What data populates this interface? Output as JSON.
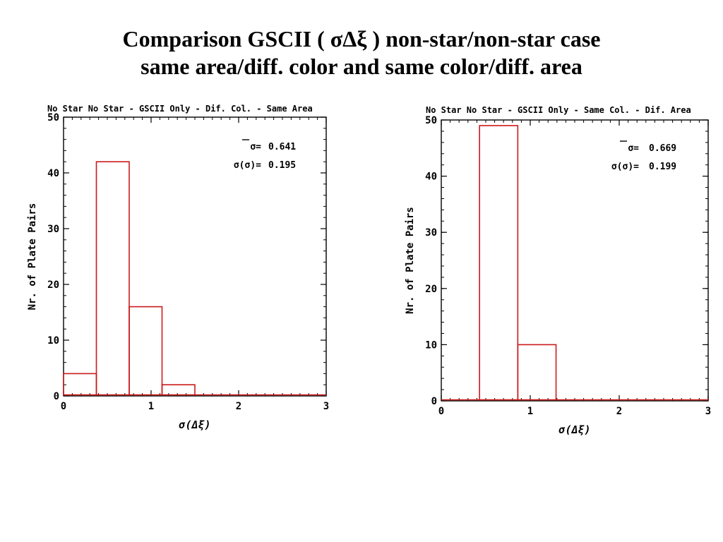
{
  "slide": {
    "title_line1": "Comparison GSCII ( σΔξ ) non-star/non-star case",
    "title_line2": "same area/diff. color and same color/diff. area"
  },
  "colors": {
    "histogram": "#cc1a1a",
    "axes": "#000000"
  },
  "chart_data": [
    {
      "type": "bar",
      "histogram": true,
      "title": "No Star No Star - GSCII Only - Dif. Col. - Same Area",
      "xlabel": "σ(Δξ)",
      "ylabel": "Nr. of Plate Pairs",
      "xlim": [
        0,
        3
      ],
      "ylim": [
        0,
        50
      ],
      "xticks": [
        "0",
        "1",
        "2",
        "3"
      ],
      "yticks": [
        "0",
        "10",
        "20",
        "30",
        "40",
        "50"
      ],
      "bin_edges": [
        0,
        0.375,
        0.75,
        1.125,
        1.5,
        1.875,
        2.25,
        2.625,
        3
      ],
      "values": [
        4,
        42,
        16,
        2,
        0,
        0,
        0,
        0
      ],
      "stats": [
        {
          "label": "σ=",
          "value": "0.641",
          "overline": true
        },
        {
          "label": "σ(σ)=",
          "value": "0.195",
          "overline": false
        }
      ],
      "grid": false
    },
    {
      "type": "bar",
      "histogram": true,
      "title": "No Star No Star - GSCII Only - Same Col. - Dif. Area",
      "xlabel": "σ(Δξ)",
      "ylabel": "Nr. of Plate Pairs",
      "xlim": [
        0,
        3
      ],
      "ylim": [
        0,
        50
      ],
      "xticks": [
        "0",
        "1",
        "2",
        "3"
      ],
      "yticks": [
        "0",
        "10",
        "20",
        "30",
        "40",
        "50"
      ],
      "bin_edges": [
        0,
        0.43,
        0.86,
        1.29,
        1.72,
        2.15,
        2.58,
        3.0
      ],
      "values": [
        0,
        49,
        10,
        0,
        0,
        0,
        0
      ],
      "stats": [
        {
          "label": "σ=",
          "value": "0.669",
          "overline": true
        },
        {
          "label": "σ(σ)=",
          "value": "0.199",
          "overline": false
        }
      ],
      "grid": false
    }
  ]
}
